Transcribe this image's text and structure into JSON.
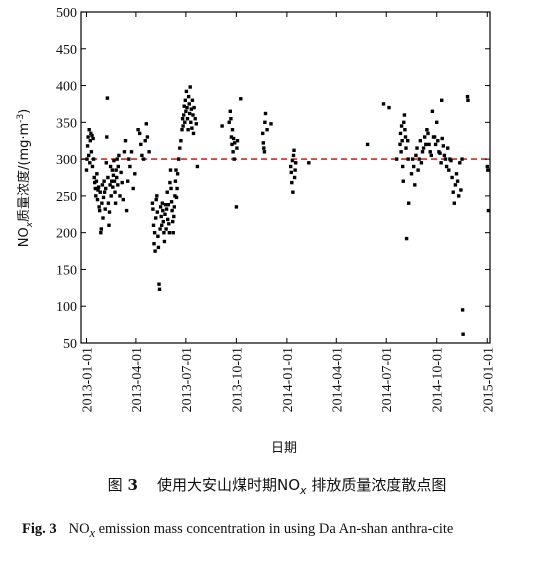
{
  "chart_data": {
    "type": "scatter",
    "ylabel": "NO_x质量浓度/(mg·m⁻³)",
    "ylabel_main": "NO",
    "ylabel_sub": "x",
    "ylabel_rest": "质量浓度/(mg·m",
    "ylabel_sup": "-3",
    "ylabel_close": ")",
    "xlabel": "日期",
    "ylim": [
      50,
      500
    ],
    "yticks": [
      "50",
      "100",
      "150",
      "200",
      "250",
      "300",
      "350",
      "400",
      "450",
      "500"
    ],
    "x_range": [
      "2012-12-22",
      "2015-01-06"
    ],
    "xticks": [
      "2013-01-01",
      "2013-04-01",
      "2013-07-01",
      "2013-10-01",
      "2014-01-01",
      "2014-04-01",
      "2014-07-01",
      "2014-10-01",
      "2015-01-01"
    ],
    "reference_line": {
      "y": 300,
      "style": "dashed",
      "color": "#e8201c"
    },
    "marker_color": "#000000",
    "grid": false,
    "points": [
      [
        "2013-01-01",
        285
      ],
      [
        "2013-01-02",
        300
      ],
      [
        "2013-01-03",
        318
      ],
      [
        "2013-01-04",
        330
      ],
      [
        "2013-01-05",
        305
      ],
      [
        "2013-01-06",
        340
      ],
      [
        "2013-01-07",
        295
      ],
      [
        "2013-01-08",
        325
      ],
      [
        "2013-01-09",
        335
      ],
      [
        "2013-01-10",
        310
      ],
      [
        "2013-01-11",
        332
      ],
      [
        "2013-01-12",
        290
      ],
      [
        "2013-01-13",
        328
      ],
      [
        "2013-01-14",
        300
      ],
      [
        "2013-01-15",
        275
      ],
      [
        "2013-01-16",
        268
      ],
      [
        "2013-01-17",
        260
      ],
      [
        "2013-01-18",
        250
      ],
      [
        "2013-01-19",
        270
      ],
      [
        "2013-01-20",
        280
      ],
      [
        "2013-01-21",
        245
      ],
      [
        "2013-01-22",
        258
      ],
      [
        "2013-01-23",
        262
      ],
      [
        "2013-01-24",
        235
      ],
      [
        "2013-01-25",
        230
      ],
      [
        "2013-01-26",
        255
      ],
      [
        "2013-01-27",
        200
      ],
      [
        "2013-01-28",
        205
      ],
      [
        "2013-01-29",
        240
      ],
      [
        "2013-01-30",
        265
      ],
      [
        "2013-01-31",
        220
      ],
      [
        "2013-02-01",
        248
      ],
      [
        "2013-02-02",
        270
      ],
      [
        "2013-02-03",
        255
      ],
      [
        "2013-02-04",
        232
      ],
      [
        "2013-02-05",
        260
      ],
      [
        "2013-02-06",
        295
      ],
      [
        "2013-02-07",
        330
      ],
      [
        "2013-02-08",
        383
      ],
      [
        "2013-02-09",
        275
      ],
      [
        "2013-02-10",
        240
      ],
      [
        "2013-02-11",
        210
      ],
      [
        "2013-02-12",
        228
      ],
      [
        "2013-02-13",
        265
      ],
      [
        "2013-02-14",
        290
      ],
      [
        "2013-02-15",
        250
      ],
      [
        "2013-02-16",
        270
      ],
      [
        "2013-02-17",
        285
      ],
      [
        "2013-02-18",
        262
      ],
      [
        "2013-02-19",
        278
      ],
      [
        "2013-02-20",
        298
      ],
      [
        "2013-02-21",
        270
      ],
      [
        "2013-02-22",
        255
      ],
      [
        "2013-02-23",
        240
      ],
      [
        "2013-02-24",
        285
      ],
      [
        "2013-02-25",
        275
      ],
      [
        "2013-02-26",
        300
      ],
      [
        "2013-02-27",
        265
      ],
      [
        "2013-02-28",
        290
      ],
      [
        "2013-03-01",
        305
      ],
      [
        "2013-03-03",
        250
      ],
      [
        "2013-03-05",
        282
      ],
      [
        "2013-03-07",
        268
      ],
      [
        "2013-03-09",
        245
      ],
      [
        "2013-03-11",
        310
      ],
      [
        "2013-03-13",
        325
      ],
      [
        "2013-03-15",
        230
      ],
      [
        "2013-03-17",
        270
      ],
      [
        "2013-03-19",
        300
      ],
      [
        "2013-03-21",
        290
      ],
      [
        "2013-03-24",
        310
      ],
      [
        "2013-03-27",
        260
      ],
      [
        "2013-03-30",
        280
      ],
      [
        "2013-04-05",
        340
      ],
      [
        "2013-04-08",
        335
      ],
      [
        "2013-04-10",
        320
      ],
      [
        "2013-04-12",
        305
      ],
      [
        "2013-04-15",
        300
      ],
      [
        "2013-04-18",
        325
      ],
      [
        "2013-04-20",
        348
      ],
      [
        "2013-04-22",
        330
      ],
      [
        "2013-04-25",
        310
      ],
      [
        "2013-05-01",
        240
      ],
      [
        "2013-05-02",
        232
      ],
      [
        "2013-05-03",
        210
      ],
      [
        "2013-05-04",
        185
      ],
      [
        "2013-05-05",
        200
      ],
      [
        "2013-05-06",
        175
      ],
      [
        "2013-05-07",
        220
      ],
      [
        "2013-05-08",
        245
      ],
      [
        "2013-05-09",
        250
      ],
      [
        "2013-05-10",
        228
      ],
      [
        "2013-05-11",
        195
      ],
      [
        "2013-05-12",
        180
      ],
      [
        "2013-05-13",
        130
      ],
      [
        "2013-05-14",
        123
      ],
      [
        "2013-05-15",
        205
      ],
      [
        "2013-05-16",
        235
      ],
      [
        "2013-05-17",
        222
      ],
      [
        "2013-05-18",
        210
      ],
      [
        "2013-05-19",
        240
      ],
      [
        "2013-05-20",
        230
      ],
      [
        "2013-05-21",
        215
      ],
      [
        "2013-05-22",
        200
      ],
      [
        "2013-05-23",
        188
      ],
      [
        "2013-05-24",
        225
      ],
      [
        "2013-05-25",
        238
      ],
      [
        "2013-05-26",
        205
      ],
      [
        "2013-05-27",
        232
      ],
      [
        "2013-05-28",
        255
      ],
      [
        "2013-05-29",
        218
      ],
      [
        "2013-05-30",
        238
      ],
      [
        "2013-05-31",
        212
      ],
      [
        "2013-06-01",
        200
      ],
      [
        "2013-06-02",
        268
      ],
      [
        "2013-06-03",
        285
      ],
      [
        "2013-06-04",
        260
      ],
      [
        "2013-06-05",
        242
      ],
      [
        "2013-06-06",
        230
      ],
      [
        "2013-06-07",
        215
      ],
      [
        "2013-06-08",
        200
      ],
      [
        "2013-06-09",
        222
      ],
      [
        "2013-06-10",
        235
      ],
      [
        "2013-06-11",
        250
      ],
      [
        "2013-06-12",
        270
      ],
      [
        "2013-06-13",
        285
      ],
      [
        "2013-06-14",
        248
      ],
      [
        "2013-06-15",
        260
      ],
      [
        "2013-06-16",
        280
      ],
      [
        "2013-06-18",
        300
      ],
      [
        "2013-06-20",
        315
      ],
      [
        "2013-06-22",
        325
      ],
      [
        "2013-06-24",
        340
      ],
      [
        "2013-06-25",
        355
      ],
      [
        "2013-06-26",
        345
      ],
      [
        "2013-06-27",
        360
      ],
      [
        "2013-06-28",
        372
      ],
      [
        "2013-06-29",
        350
      ],
      [
        "2013-06-30",
        380
      ],
      [
        "2013-07-01",
        365
      ],
      [
        "2013-07-02",
        392
      ],
      [
        "2013-07-03",
        370
      ],
      [
        "2013-07-04",
        355
      ],
      [
        "2013-07-05",
        340
      ],
      [
        "2013-07-06",
        385
      ],
      [
        "2013-07-07",
        375
      ],
      [
        "2013-07-08",
        362
      ],
      [
        "2013-07-09",
        398
      ],
      [
        "2013-07-10",
        350
      ],
      [
        "2013-07-11",
        368
      ],
      [
        "2013-07-12",
        342
      ],
      [
        "2013-07-13",
        380
      ],
      [
        "2013-07-14",
        360
      ],
      [
        "2013-07-15",
        335
      ],
      [
        "2013-07-16",
        370
      ],
      [
        "2013-07-18",
        355
      ],
      [
        "2013-07-20",
        348
      ],
      [
        "2013-07-22",
        290
      ],
      [
        "2013-09-05",
        345
      ],
      [
        "2013-09-18",
        350
      ],
      [
        "2013-09-20",
        365
      ],
      [
        "2013-09-21",
        355
      ],
      [
        "2013-09-22",
        330
      ],
      [
        "2013-09-23",
        320
      ],
      [
        "2013-09-24",
        340
      ],
      [
        "2013-09-25",
        310
      ],
      [
        "2013-09-26",
        328
      ],
      [
        "2013-09-27",
        300
      ],
      [
        "2013-09-28",
        322
      ],
      [
        "2013-10-01",
        235
      ],
      [
        "2013-10-02",
        315
      ],
      [
        "2013-10-03",
        325
      ],
      [
        "2013-10-09",
        382
      ],
      [
        "2013-11-18",
        335
      ],
      [
        "2013-11-19",
        322
      ],
      [
        "2013-11-20",
        315
      ],
      [
        "2013-11-21",
        310
      ],
      [
        "2013-11-22",
        350
      ],
      [
        "2013-11-23",
        362
      ],
      [
        "2013-11-26",
        340
      ],
      [
        "2013-12-03",
        348
      ],
      [
        "2014-01-08",
        290
      ],
      [
        "2014-01-09",
        282
      ],
      [
        "2014-01-10",
        268
      ],
      [
        "2014-01-11",
        298
      ],
      [
        "2014-01-12",
        255
      ],
      [
        "2014-01-13",
        305
      ],
      [
        "2014-01-14",
        312
      ],
      [
        "2014-01-15",
        275
      ],
      [
        "2014-01-16",
        285
      ],
      [
        "2014-01-17",
        295
      ],
      [
        "2014-02-10",
        295
      ],
      [
        "2014-05-28",
        320
      ],
      [
        "2014-06-26",
        375
      ],
      [
        "2014-07-06",
        370
      ],
      [
        "2014-07-20",
        300
      ],
      [
        "2014-07-26",
        320
      ],
      [
        "2014-07-27",
        335
      ],
      [
        "2014-07-28",
        310
      ],
      [
        "2014-07-29",
        345
      ],
      [
        "2014-07-30",
        325
      ],
      [
        "2014-07-31",
        290
      ],
      [
        "2014-08-01",
        270
      ],
      [
        "2014-08-02",
        350
      ],
      [
        "2014-08-03",
        360
      ],
      [
        "2014-08-04",
        340
      ],
      [
        "2014-08-05",
        330
      ],
      [
        "2014-08-06",
        315
      ],
      [
        "2014-08-07",
        192
      ],
      [
        "2014-08-09",
        325
      ],
      [
        "2014-08-10",
        300
      ],
      [
        "2014-08-11",
        240
      ],
      [
        "2014-08-16",
        280
      ],
      [
        "2014-08-18",
        300
      ],
      [
        "2014-08-20",
        290
      ],
      [
        "2014-08-22",
        265
      ],
      [
        "2014-08-24",
        305
      ],
      [
        "2014-08-26",
        315
      ],
      [
        "2014-08-28",
        285
      ],
      [
        "2014-08-30",
        300
      ],
      [
        "2014-09-01",
        325
      ],
      [
        "2014-09-03",
        295
      ],
      [
        "2014-09-05",
        310
      ],
      [
        "2014-09-07",
        315
      ],
      [
        "2014-09-09",
        330
      ],
      [
        "2014-09-11",
        320
      ],
      [
        "2014-09-13",
        340
      ],
      [
        "2014-09-15",
        335
      ],
      [
        "2014-09-17",
        320
      ],
      [
        "2014-09-19",
        310
      ],
      [
        "2014-09-21",
        305
      ],
      [
        "2014-09-23",
        365
      ],
      [
        "2014-09-25",
        330
      ],
      [
        "2014-09-27",
        330
      ],
      [
        "2014-09-29",
        320
      ],
      [
        "2014-10-01",
        350
      ],
      [
        "2014-10-03",
        325
      ],
      [
        "2014-10-05",
        310
      ],
      [
        "2014-10-07",
        308
      ],
      [
        "2014-10-09",
        295
      ],
      [
        "2014-10-10",
        380
      ],
      [
        "2014-10-11",
        328
      ],
      [
        "2014-10-13",
        318
      ],
      [
        "2014-10-15",
        305
      ],
      [
        "2014-10-17",
        300
      ],
      [
        "2014-10-19",
        290
      ],
      [
        "2014-10-21",
        315
      ],
      [
        "2014-10-23",
        285
      ],
      [
        "2014-10-25",
        300
      ],
      [
        "2014-10-27",
        298
      ],
      [
        "2014-10-29",
        275
      ],
      [
        "2014-10-31",
        255
      ],
      [
        "2014-11-02",
        240
      ],
      [
        "2014-11-04",
        265
      ],
      [
        "2014-11-06",
        280
      ],
      [
        "2014-11-08",
        270
      ],
      [
        "2014-11-10",
        250
      ],
      [
        "2014-11-12",
        295
      ],
      [
        "2014-11-14",
        258
      ],
      [
        "2014-11-16",
        300
      ],
      [
        "2014-11-17",
        95
      ],
      [
        "2014-11-18",
        62
      ],
      [
        "2014-11-26",
        385
      ],
      [
        "2014-11-27",
        380
      ],
      [
        "2015-01-01",
        290
      ],
      [
        "2015-01-02",
        285
      ],
      [
        "2015-01-03",
        230
      ]
    ]
  },
  "caption": {
    "cn_prefix": "图",
    "cn_num": "3",
    "cn_text": "使用大安山煤时期",
    "cn_nox_main": "NO",
    "cn_nox_sub": "x",
    "cn_text2": "排放质量浓度散点图",
    "en_label": "Fig. 3",
    "en_nox_main": "NO",
    "en_nox_sub": "x",
    "en_text": "emission mass concentration in using Da An-shan anthra-cite"
  }
}
